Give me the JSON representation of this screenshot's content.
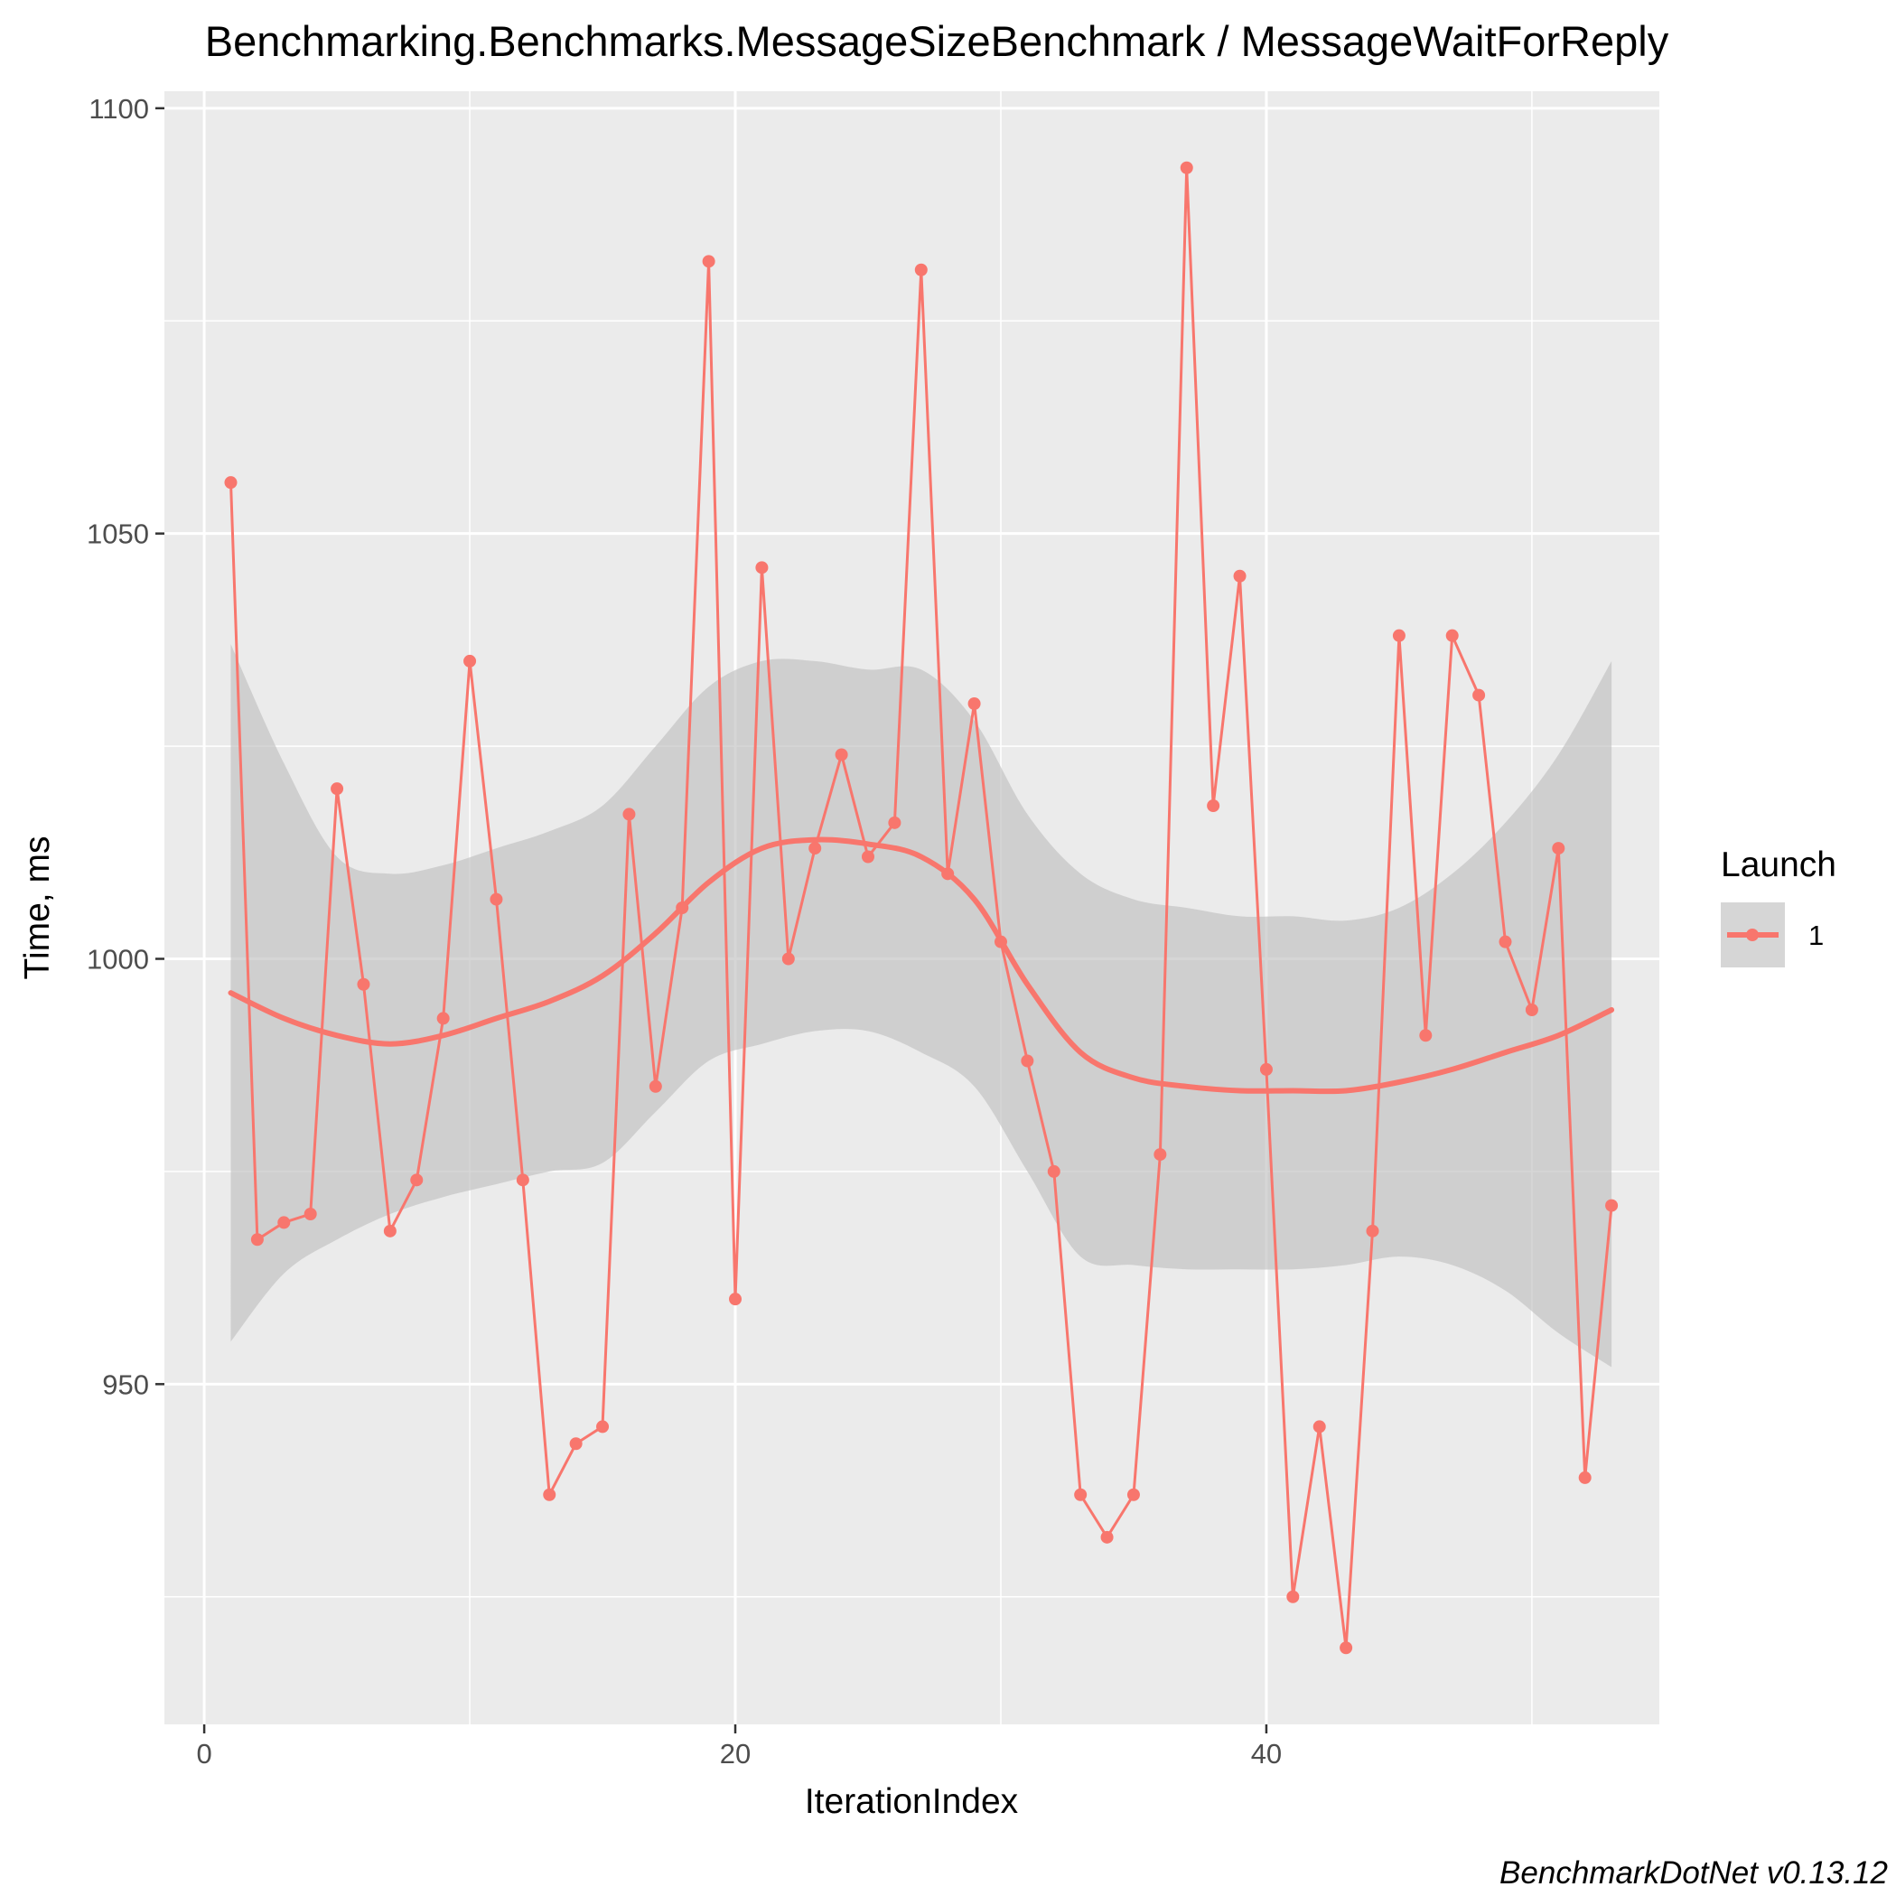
{
  "chart_data": {
    "type": "line",
    "title": "Benchmarking.Benchmarks.MessageSizeBenchmark / MessageWaitForReply",
    "xlabel": "IterationIndex",
    "ylabel": "Time, ms",
    "caption": "BenchmarkDotNet v0.13.12",
    "xlim": [
      -1.5,
      54.8
    ],
    "ylim": [
      910,
      1102
    ],
    "x_ticks": [
      0,
      20,
      40
    ],
    "x_tick_labels": [
      "0",
      "20",
      "40"
    ],
    "y_ticks": [
      950,
      1000,
      1050,
      1100
    ],
    "y_tick_labels": [
      "950",
      "1000",
      "1050",
      "1100"
    ],
    "grid": true,
    "legend": {
      "title": "Launch",
      "position": "right",
      "entries": [
        "1"
      ]
    },
    "colors": {
      "series": "#f8766d",
      "smooth_band": "#c0c0c0",
      "panel": "#ebebeb",
      "grid": "#ffffff"
    },
    "series": [
      {
        "name": "1",
        "x": [
          1,
          2,
          3,
          4,
          5,
          6,
          7,
          8,
          9,
          10,
          11,
          12,
          13,
          14,
          15,
          16,
          17,
          18,
          19,
          20,
          21,
          22,
          23,
          24,
          25,
          26,
          27,
          28,
          29,
          30,
          31,
          32,
          33,
          34,
          35,
          36,
          37,
          38,
          39,
          40,
          41,
          42,
          43,
          44,
          45,
          46,
          47,
          48,
          49,
          50,
          51,
          52,
          53
        ],
        "values": [
          1056,
          967,
          969,
          970,
          1020,
          997,
          968,
          974,
          993,
          1035,
          1007,
          974,
          937,
          943,
          945,
          1017,
          985,
          1006,
          1082,
          960,
          1046,
          1000,
          1013,
          1024,
          1012,
          1016,
          1081,
          1010,
          1030,
          1002,
          988,
          975,
          937,
          932,
          937,
          977,
          1093,
          1018,
          1045,
          987,
          925,
          945,
          919,
          968,
          1038,
          991,
          1038,
          1031,
          1002,
          994,
          1013,
          939,
          971
        ]
      }
    ],
    "smooth": {
      "x": [
        1,
        3,
        5,
        7,
        9,
        11,
        13,
        15,
        17,
        19,
        21,
        23,
        25,
        27,
        29,
        31,
        33,
        35,
        37,
        39,
        41,
        43,
        45,
        47,
        49,
        51,
        53
      ],
      "fit": [
        996,
        993,
        991,
        990,
        991,
        993,
        995,
        998,
        1003,
        1009,
        1013,
        1014,
        1013.5,
        1012,
        1007,
        997,
        989,
        986,
        985,
        984.5,
        984.5,
        984.5,
        985.5,
        987,
        989,
        991,
        994
      ],
      "lower": [
        955,
        963,
        967,
        970,
        972,
        973.5,
        975,
        976,
        982,
        988,
        990,
        991.5,
        991.5,
        989,
        985,
        975,
        965,
        964,
        963.5,
        963.5,
        963.5,
        964,
        965,
        964,
        961,
        956,
        952
      ],
      "upper": [
        1037,
        1023,
        1012,
        1010,
        1011,
        1013,
        1015,
        1018,
        1025,
        1032,
        1035,
        1035,
        1034,
        1034,
        1028,
        1017,
        1010,
        1007,
        1006,
        1005,
        1005,
        1004.5,
        1006,
        1010,
        1016,
        1024,
        1035
      ]
    }
  }
}
